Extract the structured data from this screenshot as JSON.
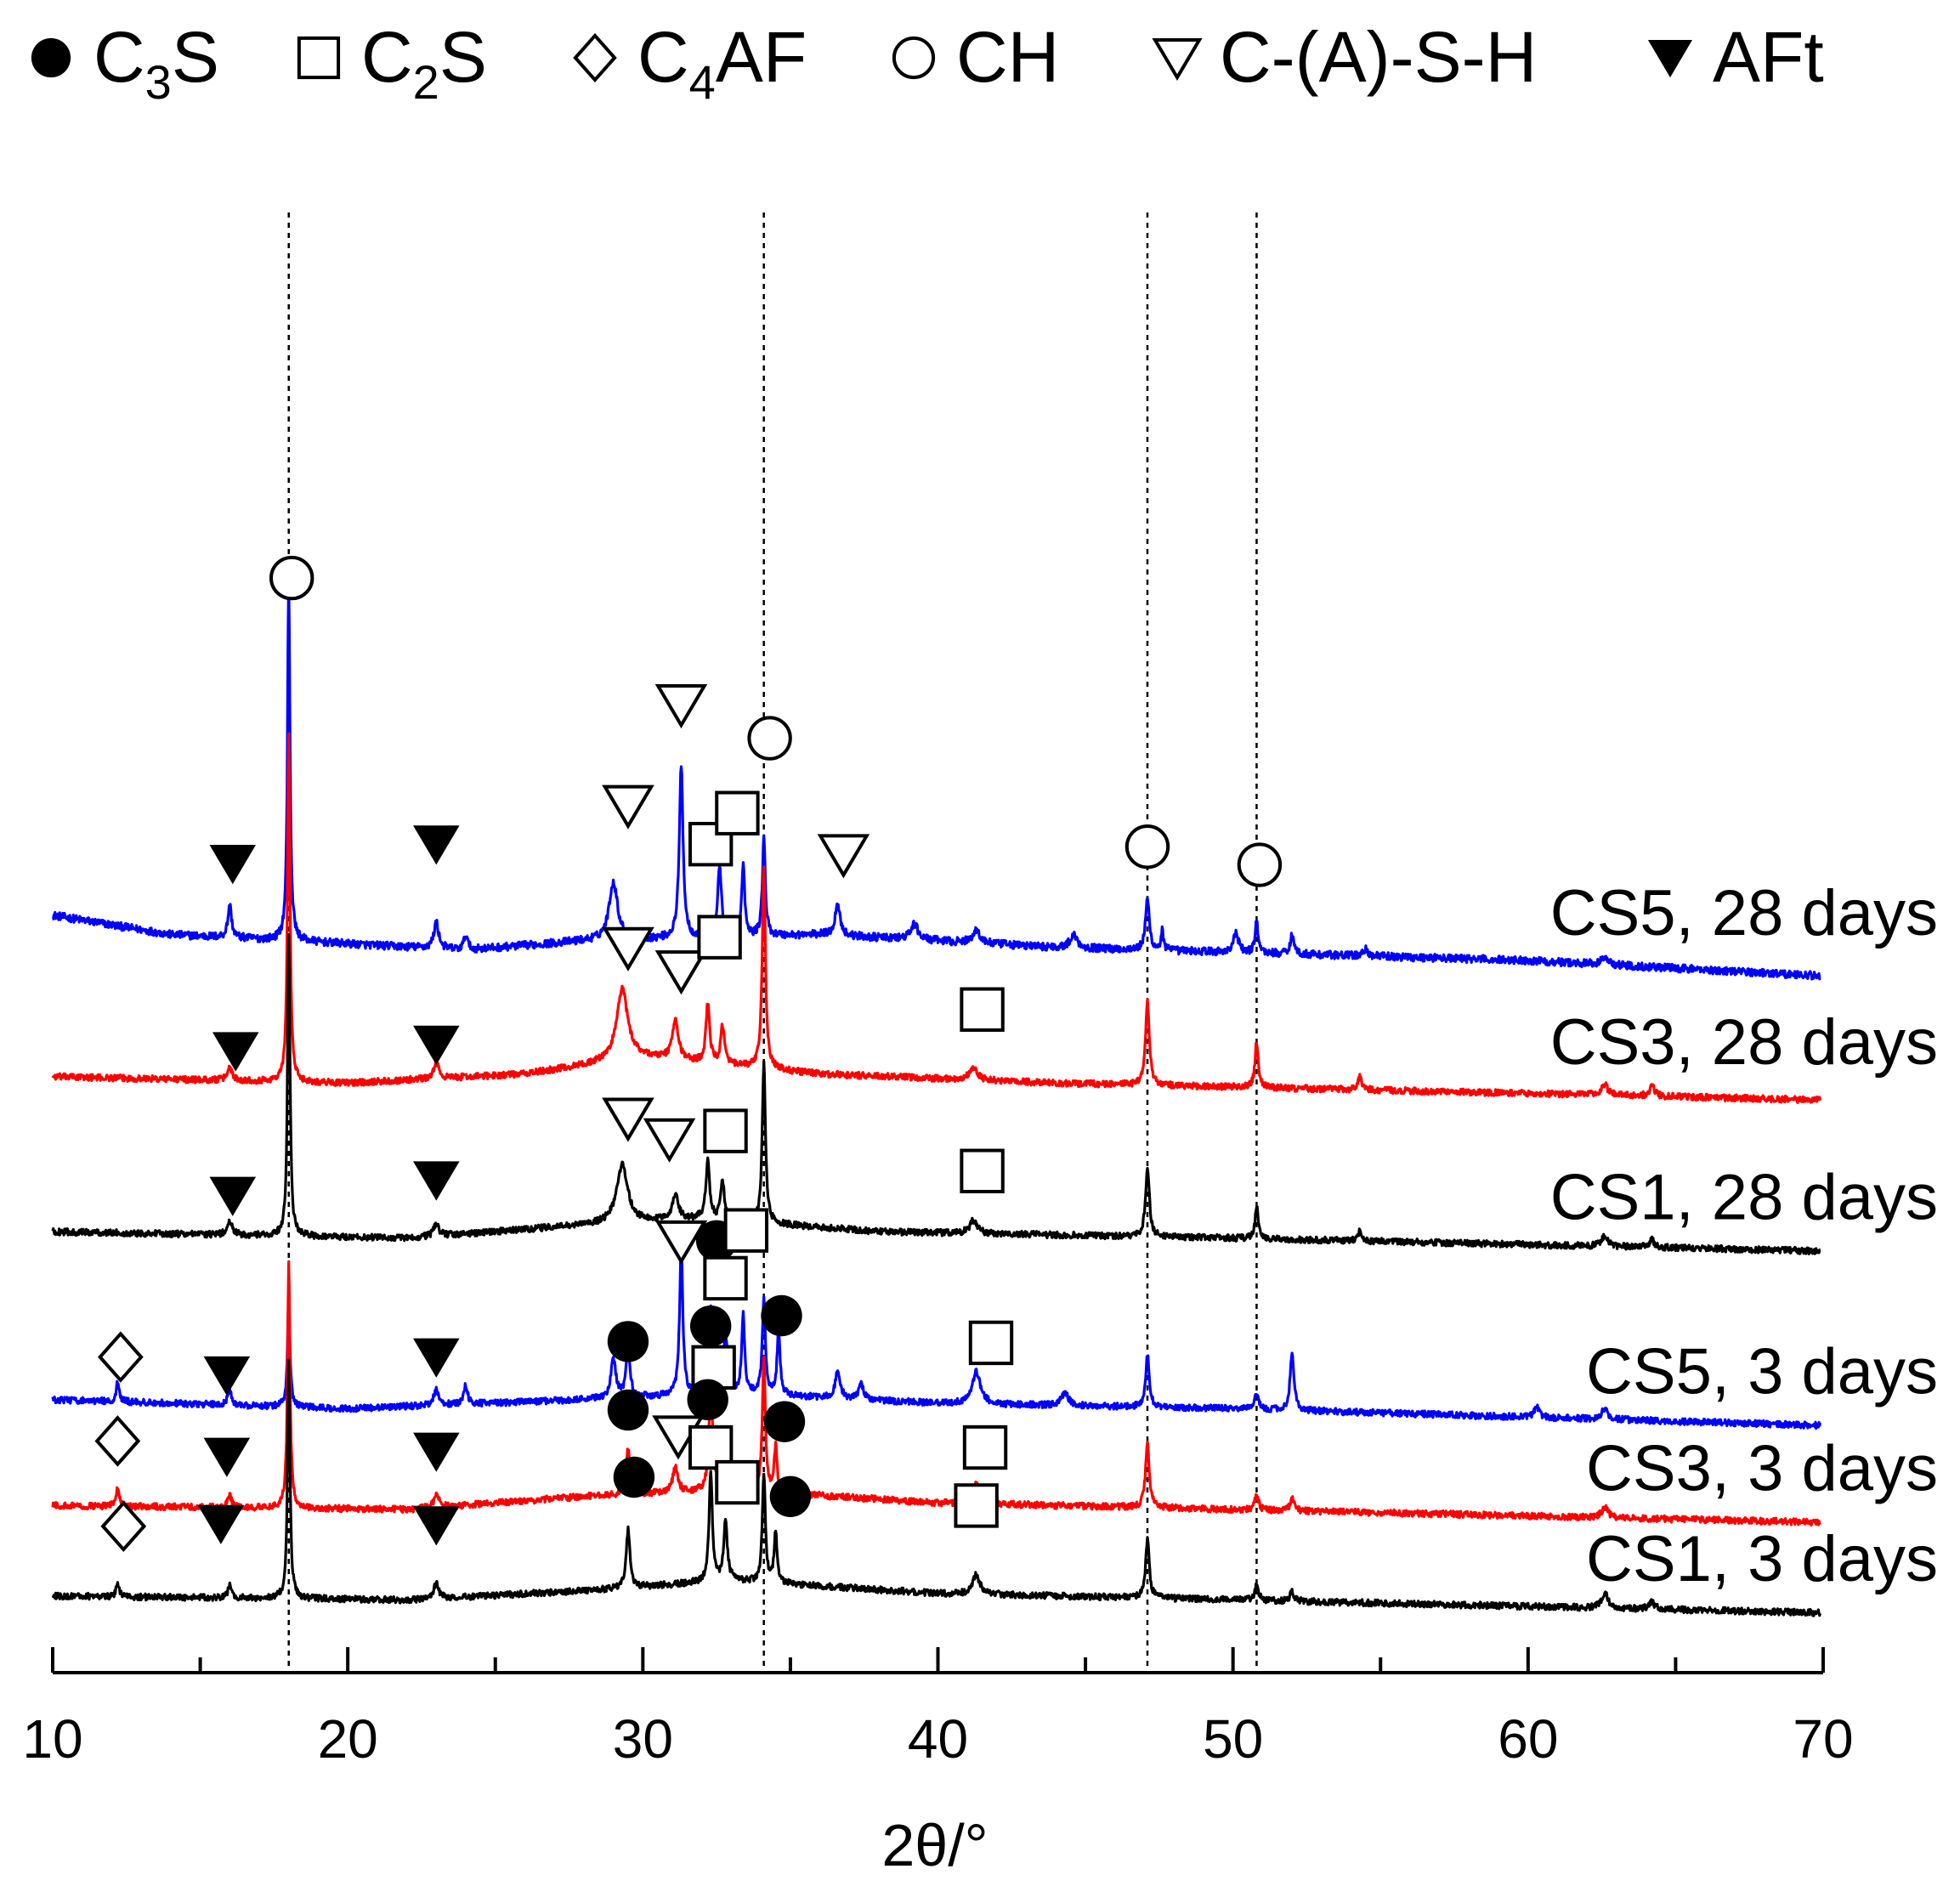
{
  "chart_data": {
    "type": "line",
    "title": "",
    "xlabel": "2θ/°",
    "ylabel": "",
    "xlim": [
      10,
      70
    ],
    "xticks_major": [
      10,
      20,
      30,
      40,
      50,
      60,
      70
    ],
    "xticks_minor": [
      15,
      25,
      35,
      45,
      55,
      65
    ],
    "legend": [
      {
        "symbol": "filled-circle",
        "label": "C3S",
        "base": "C",
        "sub": "3",
        "tail": "S"
      },
      {
        "symbol": "open-square",
        "label": "C2S",
        "base": "C",
        "sub": "2",
        "tail": "S"
      },
      {
        "symbol": "open-diamond",
        "label": "C4AF",
        "base": "C",
        "sub": "4",
        "tail": "AF"
      },
      {
        "symbol": "open-circle",
        "label": "CH",
        "base": "CH",
        "sub": "",
        "tail": ""
      },
      {
        "symbol": "open-triangle-down",
        "label": "C-(A)-S-H",
        "base": "C-(A)-S-H",
        "sub": "",
        "tail": ""
      },
      {
        "symbol": "filled-triangle-down",
        "label": "AFt",
        "base": "AFt",
        "sub": "",
        "tail": ""
      }
    ],
    "reference_lines": [
      18.0,
      34.1,
      47.1,
      50.8
    ],
    "series": [
      {
        "name": "CS5, 28 days",
        "color": "#0000ff",
        "offset": 5.0,
        "noise": 0.06,
        "baseline": [
          [
            10,
            0.35
          ],
          [
            14,
            0.2
          ],
          [
            24,
            0.08
          ],
          [
            28,
            0.15
          ],
          [
            36,
            0.2
          ],
          [
            44,
            0.1
          ],
          [
            60,
            0.0
          ],
          [
            70,
            -0.12
          ]
        ],
        "peaks": [
          [
            18.0,
            2.8,
            0.1
          ],
          [
            16.0,
            0.25,
            0.15
          ],
          [
            23.0,
            0.2,
            0.2
          ],
          [
            24.0,
            0.12,
            0.15
          ],
          [
            29.0,
            0.45,
            0.35
          ],
          [
            31.3,
            1.35,
            0.15
          ],
          [
            32.6,
            0.55,
            0.15
          ],
          [
            33.4,
            0.55,
            0.12
          ],
          [
            34.1,
            0.75,
            0.12
          ],
          [
            36.6,
            0.25,
            0.2
          ],
          [
            39.2,
            0.12,
            0.3
          ],
          [
            41.3,
            0.1,
            0.3
          ],
          [
            44.6,
            0.1,
            0.3
          ],
          [
            47.1,
            0.4,
            0.15
          ],
          [
            47.6,
            0.15,
            0.1
          ],
          [
            50.1,
            0.15,
            0.2
          ],
          [
            50.8,
            0.25,
            0.12
          ],
          [
            52.0,
            0.15,
            0.15
          ],
          [
            54.5,
            0.05,
            0.2
          ],
          [
            62.6,
            0.06,
            0.25
          ]
        ],
        "markers": [
          [
            "filled-triangle-down",
            16.1,
            0.75
          ],
          [
            "filled-triangle-down",
            23.0,
            0.9
          ],
          [
            "open-triangle-down",
            29.5,
            1.2
          ],
          [
            "open-triangle-down",
            31.3,
            1.98
          ],
          [
            "open-square",
            32.3,
            0.9
          ],
          [
            "open-square",
            33.2,
            1.14
          ],
          [
            "open-circle",
            34.3,
            1.72
          ],
          [
            "open-triangle-down",
            36.8,
            0.82
          ],
          [
            "open-circle",
            18.1,
            2.96
          ],
          [
            "open-circle",
            47.1,
            0.88
          ],
          [
            "open-circle",
            50.9,
            0.74
          ]
        ]
      },
      {
        "name": "CS3, 28 days",
        "color": "#ff0000",
        "offset": 4.0,
        "noise": 0.05,
        "baseline": [
          [
            10,
            0.1
          ],
          [
            20,
            0.05
          ],
          [
            26,
            0.12
          ],
          [
            30,
            0.25
          ],
          [
            36,
            0.12
          ],
          [
            44,
            0.05
          ],
          [
            70,
            -0.08
          ]
        ],
        "peaks": [
          [
            18.0,
            2.7,
            0.1
          ],
          [
            16.0,
            0.1,
            0.2
          ],
          [
            23.0,
            0.12,
            0.2
          ],
          [
            29.3,
            0.55,
            0.45
          ],
          [
            31.1,
            0.3,
            0.25
          ],
          [
            32.2,
            0.45,
            0.15
          ],
          [
            32.7,
            0.3,
            0.15
          ],
          [
            34.1,
            1.55,
            0.13
          ],
          [
            41.2,
            0.1,
            0.3
          ],
          [
            47.1,
            0.65,
            0.15
          ],
          [
            50.8,
            0.35,
            0.13
          ],
          [
            54.3,
            0.1,
            0.15
          ],
          [
            62.6,
            0.08,
            0.25
          ],
          [
            64.2,
            0.08,
            0.2
          ]
        ],
        "markers": [
          [
            "filled-triangle-down",
            16.2,
            0.3
          ],
          [
            "filled-triangle-down",
            23.0,
            0.35
          ],
          [
            "open-triangle-down",
            29.5,
            1.1
          ],
          [
            "open-triangle-down",
            31.3,
            0.92
          ],
          [
            "open-square",
            32.6,
            1.18
          ],
          [
            "open-square",
            41.5,
            0.62
          ]
        ]
      },
      {
        "name": "CS1, 28 days",
        "color": "#000000",
        "offset": 2.8,
        "noise": 0.05,
        "baseline": [
          [
            10,
            0.1
          ],
          [
            22,
            0.05
          ],
          [
            28,
            0.15
          ],
          [
            32,
            0.2
          ],
          [
            38,
            0.1
          ],
          [
            50,
            0.05
          ],
          [
            70,
            -0.05
          ]
        ],
        "peaks": [
          [
            18.0,
            2.35,
            0.1
          ],
          [
            16.0,
            0.1,
            0.2
          ],
          [
            23.0,
            0.1,
            0.2
          ],
          [
            29.3,
            0.45,
            0.45
          ],
          [
            31.1,
            0.2,
            0.25
          ],
          [
            32.2,
            0.45,
            0.15
          ],
          [
            32.7,
            0.3,
            0.15
          ],
          [
            34.1,
            1.25,
            0.13
          ],
          [
            41.2,
            0.1,
            0.3
          ],
          [
            47.1,
            0.55,
            0.15
          ],
          [
            50.8,
            0.25,
            0.13
          ],
          [
            54.3,
            0.08,
            0.15
          ],
          [
            62.6,
            0.08,
            0.25
          ],
          [
            64.2,
            0.06,
            0.2
          ]
        ],
        "markers": [
          [
            "filled-triangle-down",
            16.1,
            0.38
          ],
          [
            "filled-triangle-down",
            23.0,
            0.5
          ],
          [
            "open-triangle-down",
            29.5,
            0.98
          ],
          [
            "open-triangle-down",
            30.9,
            0.82
          ],
          [
            "open-square",
            32.8,
            0.88
          ],
          [
            "open-square",
            41.5,
            0.57
          ]
        ]
      },
      {
        "name": "CS5, 3 days",
        "color": "#0000ff",
        "offset": 1.45,
        "noise": 0.05,
        "baseline": [
          [
            10,
            0.15
          ],
          [
            20,
            0.08
          ],
          [
            28,
            0.15
          ],
          [
            33,
            0.2
          ],
          [
            40,
            0.12
          ],
          [
            50,
            0.08
          ],
          [
            70,
            -0.05
          ]
        ],
        "peaks": [
          [
            12.2,
            0.15,
            0.12
          ],
          [
            16.0,
            0.12,
            0.15
          ],
          [
            18.0,
            0.85,
            0.1
          ],
          [
            23.0,
            0.12,
            0.2
          ],
          [
            24.0,
            0.15,
            0.15
          ],
          [
            29.0,
            0.3,
            0.2
          ],
          [
            29.5,
            0.4,
            0.15
          ],
          [
            31.3,
            1.15,
            0.13
          ],
          [
            32.3,
            0.65,
            0.15
          ],
          [
            32.8,
            0.45,
            0.15
          ],
          [
            33.4,
            0.6,
            0.12
          ],
          [
            34.1,
            0.75,
            0.12
          ],
          [
            34.6,
            0.5,
            0.12
          ],
          [
            36.6,
            0.2,
            0.2
          ],
          [
            37.4,
            0.12,
            0.2
          ],
          [
            41.3,
            0.25,
            0.35
          ],
          [
            44.3,
            0.1,
            0.3
          ],
          [
            47.1,
            0.4,
            0.15
          ],
          [
            50.8,
            0.12,
            0.15
          ],
          [
            52.0,
            0.45,
            0.15
          ],
          [
            60.3,
            0.08,
            0.2
          ],
          [
            62.6,
            0.08,
            0.25
          ]
        ],
        "markers": [
          [
            "open-diamond",
            12.3,
            0.48
          ],
          [
            "filled-triangle-down",
            15.9,
            0.34
          ],
          [
            "filled-triangle-down",
            23.0,
            0.48
          ],
          [
            "filled-circle",
            29.5,
            0.6
          ],
          [
            "open-triangle-down",
            31.3,
            1.38
          ],
          [
            "filled-circle",
            32.5,
            1.38
          ],
          [
            "open-square",
            33.5,
            1.46
          ],
          [
            "open-square",
            32.8,
            1.09
          ],
          [
            "filled-circle",
            34.7,
            0.8
          ],
          [
            "open-square",
            41.8,
            0.59
          ]
        ]
      },
      {
        "name": "CS3, 3 days",
        "color": "#ff0000",
        "offset": 0.7,
        "noise": 0.05,
        "baseline": [
          [
            10,
            0.08
          ],
          [
            22,
            0.05
          ],
          [
            28,
            0.15
          ],
          [
            33,
            0.2
          ],
          [
            40,
            0.1
          ],
          [
            50,
            0.05
          ],
          [
            70,
            -0.05
          ]
        ],
        "peaks": [
          [
            12.2,
            0.15,
            0.12
          ],
          [
            16.0,
            0.1,
            0.15
          ],
          [
            18.0,
            1.9,
            0.1
          ],
          [
            23.0,
            0.1,
            0.2
          ],
          [
            29.5,
            0.35,
            0.15
          ],
          [
            31.1,
            0.2,
            0.2
          ],
          [
            32.3,
            0.9,
            0.13
          ],
          [
            32.7,
            0.4,
            0.15
          ],
          [
            34.1,
            1.05,
            0.12
          ],
          [
            34.5,
            0.35,
            0.12
          ],
          [
            41.3,
            0.15,
            0.3
          ],
          [
            47.1,
            0.5,
            0.15
          ],
          [
            50.8,
            0.12,
            0.15
          ],
          [
            52.0,
            0.1,
            0.15
          ],
          [
            62.6,
            0.08,
            0.25
          ]
        ],
        "markers": [
          [
            "open-diamond",
            12.2,
            0.58
          ],
          [
            "filled-triangle-down",
            15.9,
            0.46
          ],
          [
            "filled-triangle-down",
            23.0,
            0.5
          ],
          [
            "filled-circle",
            29.5,
            0.82
          ],
          [
            "open-triangle-down",
            31.2,
            0.62
          ],
          [
            "filled-circle",
            32.3,
            1.47
          ],
          [
            "open-square",
            32.4,
            1.15
          ],
          [
            "filled-circle",
            34.8,
            0.73
          ],
          [
            "open-square",
            41.6,
            0.53
          ]
        ]
      },
      {
        "name": "CS1, 3 days",
        "color": "#000000",
        "offset": 0.0,
        "noise": 0.05,
        "baseline": [
          [
            10,
            0.08
          ],
          [
            22,
            0.05
          ],
          [
            28,
            0.12
          ],
          [
            33,
            0.2
          ],
          [
            40,
            0.1
          ],
          [
            50,
            0.05
          ],
          [
            70,
            -0.05
          ]
        ],
        "peaks": [
          [
            12.2,
            0.1,
            0.12
          ],
          [
            16.0,
            0.1,
            0.15
          ],
          [
            18.0,
            1.85,
            0.1
          ],
          [
            23.0,
            0.12,
            0.2
          ],
          [
            29.5,
            0.45,
            0.15
          ],
          [
            32.3,
            0.85,
            0.13
          ],
          [
            32.8,
            0.45,
            0.15
          ],
          [
            34.1,
            0.85,
            0.12
          ],
          [
            34.5,
            0.4,
            0.12
          ],
          [
            41.3,
            0.15,
            0.3
          ],
          [
            47.1,
            0.45,
            0.15
          ],
          [
            50.8,
            0.12,
            0.15
          ],
          [
            52.0,
            0.08,
            0.15
          ],
          [
            62.6,
            0.12,
            0.25
          ],
          [
            64.2,
            0.06,
            0.2
          ]
        ],
        "markers": [
          [
            "open-diamond",
            12.4,
            0.62
          ],
          [
            "filled-triangle-down",
            15.7,
            0.64
          ],
          [
            "filled-triangle-down",
            23.0,
            0.63
          ],
          [
            "filled-circle",
            29.7,
            1.0
          ],
          [
            "filled-circle",
            32.2,
            1.6
          ],
          [
            "open-square",
            32.3,
            1.23
          ],
          [
            "open-square",
            33.2,
            0.96
          ],
          [
            "filled-circle",
            35.0,
            0.85
          ],
          [
            "open-square",
            41.3,
            0.78
          ]
        ]
      }
    ]
  }
}
